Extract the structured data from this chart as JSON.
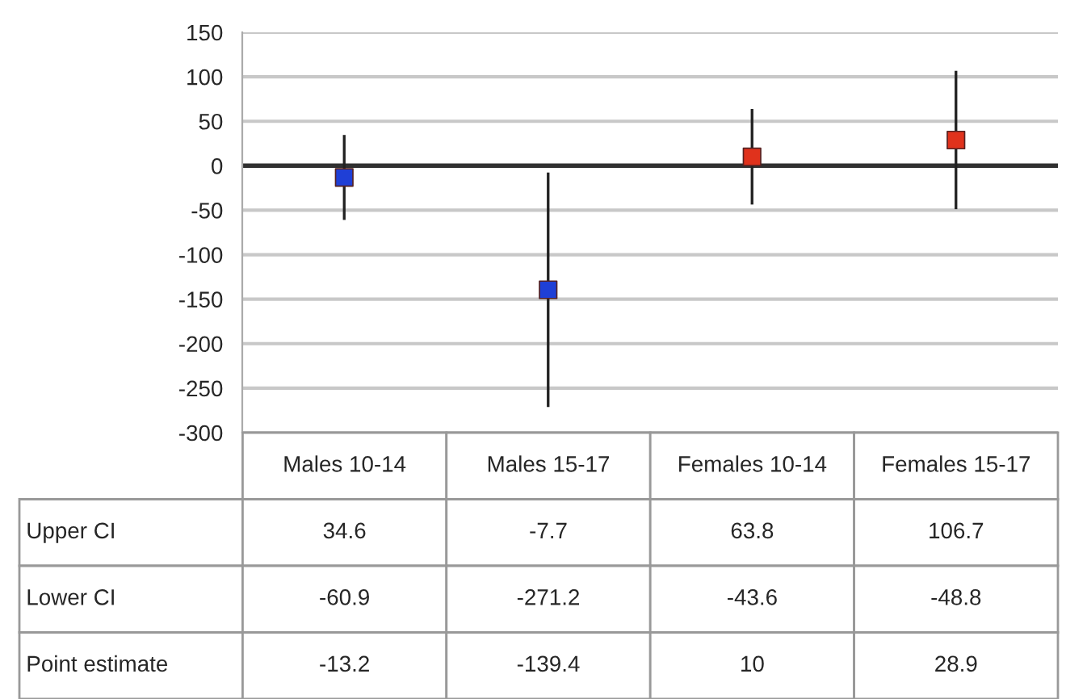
{
  "chart_data": {
    "type": "scatter",
    "categories": [
      "Males 10-14",
      "Males 15-17",
      "Females 10-14",
      "Females 15-17"
    ],
    "series": [
      {
        "name": "Point estimate",
        "marker": "square",
        "colors": [
          "#1f3fd6",
          "#1f3fd6",
          "#e0321c",
          "#e0321c"
        ],
        "values": [
          -13.2,
          -139.4,
          10,
          28.9
        ],
        "errors": [
          [
            -60.9,
            34.6
          ],
          [
            -271.2,
            -7.7
          ],
          [
            -43.6,
            63.8
          ],
          [
            -48.8,
            106.7
          ]
        ]
      }
    ],
    "ylim": [
      -300,
      150
    ],
    "yticks": [
      -300,
      -250,
      -200,
      -150,
      -100,
      -50,
      0,
      50,
      100,
      150
    ],
    "ref_lines": [
      {
        "axis": "y",
        "value": 0,
        "color": "#303030"
      }
    ],
    "grid": "y",
    "data_labels": true,
    "annotations": [
      "Upper CI",
      "34.6",
      "-7.7",
      "63.8",
      "106.7",
      "Lower CI",
      "-60.9",
      "-271.2",
      "-43.6",
      "-48.8"
    ]
  }
}
